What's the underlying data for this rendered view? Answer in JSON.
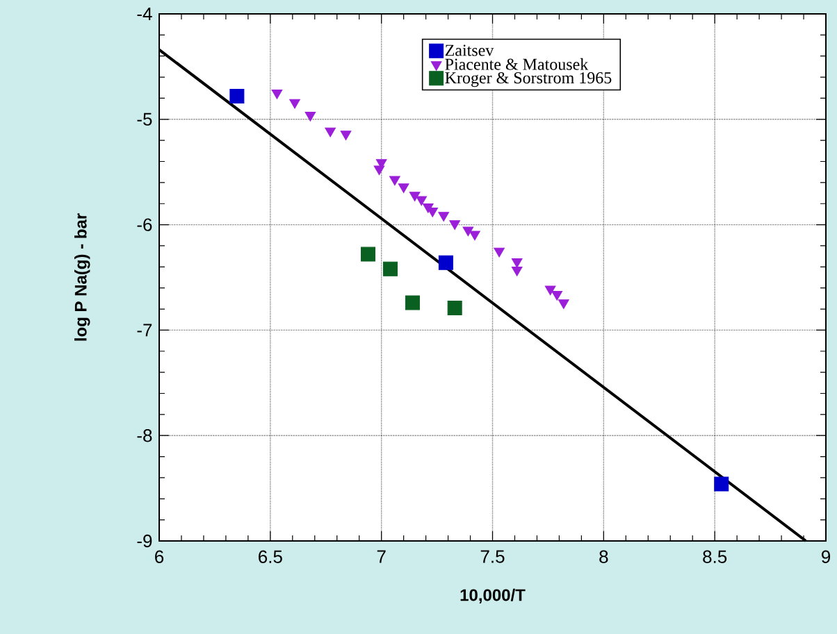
{
  "chart_data": {
    "type": "scatter",
    "xlabel": "10,000/T",
    "ylabel": "log P Na(g) - bar",
    "xlim": [
      6,
      9
    ],
    "ylim": [
      -9,
      -4
    ],
    "xticks": [
      6,
      6.5,
      7,
      7.5,
      8,
      8.5,
      9
    ],
    "yticks": [
      -9,
      -8,
      -7,
      -6,
      -5,
      -4
    ],
    "grid": true,
    "legend": "top right",
    "series": [
      {
        "type": "line",
        "color": "#000000",
        "marker": "none",
        "line_style": "solid",
        "x": [
          6,
          8.91
        ],
        "values": [
          -4.34,
          -9
        ]
      },
      {
        "name": "Zaitsev",
        "color": "#0000cc",
        "marker": "square",
        "x": [
          6.35,
          7.29,
          8.53
        ],
        "values": [
          -4.78,
          -6.36,
          -8.46
        ]
      },
      {
        "name": "Piacente  &  Matousek",
        "color": "#9b1fd8",
        "marker": "triangle",
        "x": [
          6.53,
          6.61,
          6.68,
          6.77,
          6.84,
          7.0,
          6.99,
          7.06,
          7.1,
          7.15,
          7.18,
          7.21,
          7.23,
          7.28,
          7.33,
          7.39,
          7.42,
          7.53,
          7.61,
          7.61,
          7.76,
          7.79,
          7.82
        ],
        "values": [
          -4.75,
          -4.84,
          -4.96,
          -5.11,
          -5.14,
          -5.41,
          -5.47,
          -5.57,
          -5.64,
          -5.72,
          -5.76,
          -5.83,
          -5.87,
          -5.91,
          -5.99,
          -6.05,
          -6.09,
          -6.25,
          -6.35,
          -6.43,
          -6.61,
          -6.66,
          -6.74
        ]
      },
      {
        "name": "Kroger  &  Sorstrom  1965",
        "color": "#0a6020",
        "marker": "square",
        "x": [
          6.94,
          7.04,
          7.14,
          7.33
        ],
        "values": [
          -6.28,
          -6.42,
          -6.74,
          -6.79
        ]
      }
    ]
  }
}
